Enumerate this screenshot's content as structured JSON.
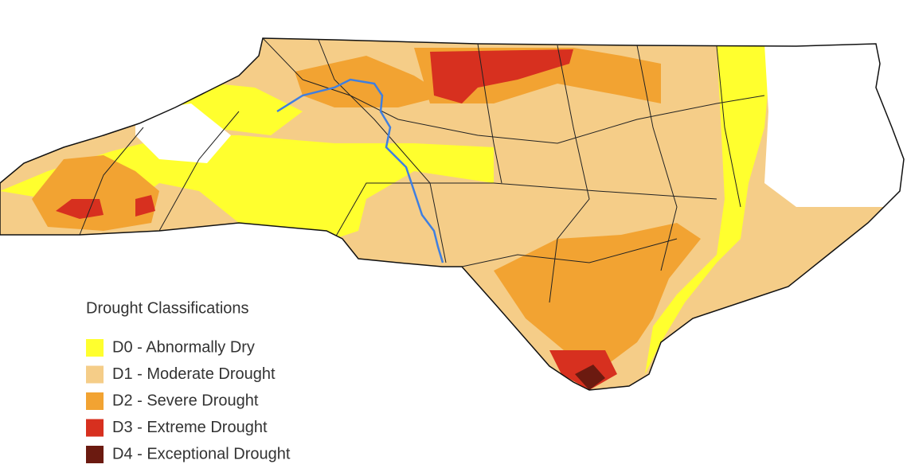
{
  "legend": {
    "title": "Drought Classifications",
    "items": [
      {
        "label": "D0 - Abnormally Dry",
        "color": "#ffff2e"
      },
      {
        "label": "D1 - Moderate Drought",
        "color": "#f5cd88"
      },
      {
        "label": "D2 - Severe Drought",
        "color": "#f2a332"
      },
      {
        "label": "D3 - Extreme Drought",
        "color": "#d7301f"
      },
      {
        "label": "D4 - Exceptional Drought",
        "color": "#6b1a10"
      }
    ]
  }
}
